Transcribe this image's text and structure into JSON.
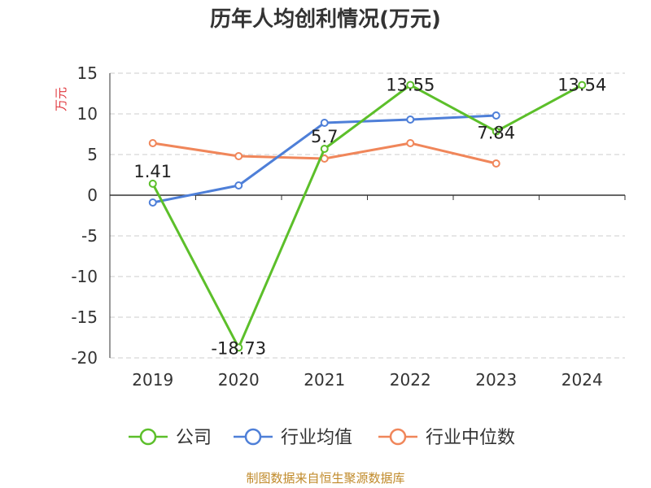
{
  "chart_data": {
    "type": "line",
    "title": "历年人均创利情况(万元)",
    "ylabel": "万元",
    "categories": [
      "2019",
      "2020",
      "2021",
      "2022",
      "2023",
      "2024"
    ],
    "ylim": [
      -20,
      15
    ],
    "yticks": [
      15,
      10,
      5,
      0,
      -5,
      -10,
      -15,
      -20
    ],
    "grid": true,
    "legend_position": "bottom",
    "series": [
      {
        "name": "公司",
        "color": "#5cbf2a",
        "values": [
          1.41,
          -18.73,
          5.7,
          13.55,
          7.84,
          13.54
        ],
        "labels": [
          "1.41",
          "-18.73",
          "5.7",
          "13.55",
          "7.84",
          "13.54"
        ]
      },
      {
        "name": "行业均值",
        "color": "#4e7fd8",
        "values": [
          -0.9,
          1.2,
          8.9,
          9.3,
          9.8,
          null
        ]
      },
      {
        "name": "行业中位数",
        "color": "#f0865a",
        "values": [
          6.4,
          4.8,
          4.5,
          6.4,
          3.9,
          null
        ]
      }
    ]
  },
  "source": "制图数据来自恒生聚源数据库"
}
